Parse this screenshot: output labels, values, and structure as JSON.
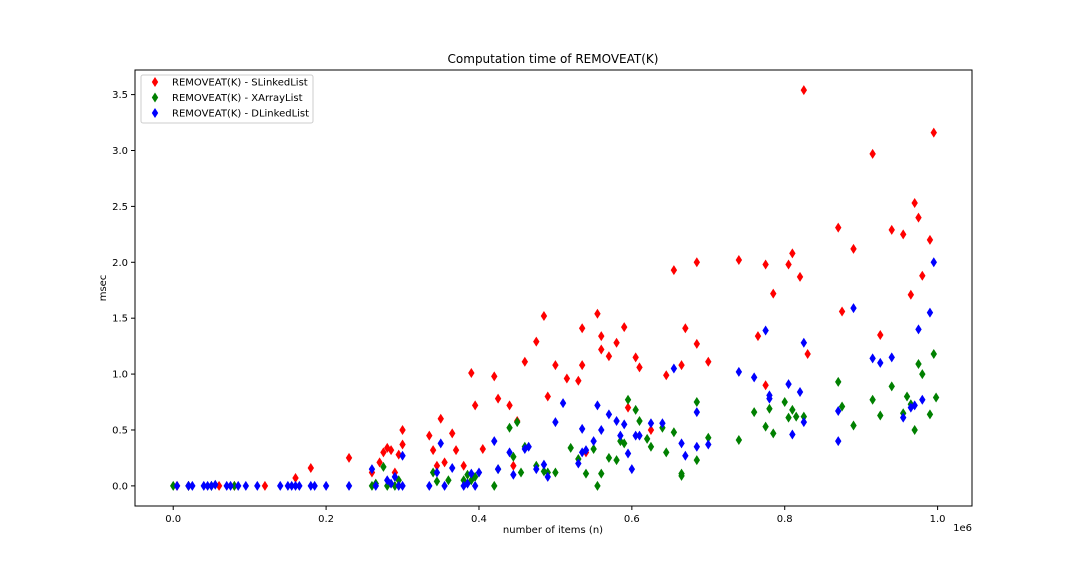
{
  "chart_data": {
    "type": "scatter",
    "title": "Computation time of REMOVEAT(K)",
    "xlabel": "number of items (n)",
    "ylabel": "msec",
    "x_offset_label": "1e6",
    "xlim": [
      -0.05,
      1.045
    ],
    "ylim": [
      -0.18,
      3.72
    ],
    "x_ticks": [
      0.0,
      0.2,
      0.4,
      0.6,
      0.8,
      1.0
    ],
    "x_tick_labels": [
      "0.0",
      "0.2",
      "0.4",
      "0.6",
      "0.8",
      "1.0"
    ],
    "y_ticks": [
      0.0,
      0.5,
      1.0,
      1.5,
      2.0,
      2.5,
      3.0,
      3.5
    ],
    "y_tick_labels": [
      "0.0",
      "0.5",
      "1.0",
      "1.5",
      "2.0",
      "2.5",
      "3.0",
      "3.5"
    ],
    "grid": false,
    "legend_position": "top-left",
    "series": [
      {
        "name": "REMOVEAT(K) - SLinkedList",
        "color": "#ff0000",
        "marker": "thin-diamond",
        "points": [
          [
            0.005,
            0
          ],
          [
            0.02,
            0
          ],
          [
            0.06,
            0
          ],
          [
            0.08,
            0
          ],
          [
            0.12,
            0
          ],
          [
            0.16,
            0.07
          ],
          [
            0.18,
            0.16
          ],
          [
            0.23,
            0.25
          ],
          [
            0.26,
            0.12
          ],
          [
            0.27,
            0.21
          ],
          [
            0.275,
            0.3
          ],
          [
            0.28,
            0.34
          ],
          [
            0.285,
            0.32
          ],
          [
            0.29,
            0.12
          ],
          [
            0.295,
            0.28
          ],
          [
            0.3,
            0.5
          ],
          [
            0.3,
            0.37
          ],
          [
            0.335,
            0.45
          ],
          [
            0.34,
            0.32
          ],
          [
            0.345,
            0.18
          ],
          [
            0.35,
            0.6
          ],
          [
            0.355,
            0.21
          ],
          [
            0.365,
            0.47
          ],
          [
            0.37,
            0.32
          ],
          [
            0.38,
            0.18
          ],
          [
            0.39,
            1.01
          ],
          [
            0.395,
            0.72
          ],
          [
            0.405,
            0.33
          ],
          [
            0.42,
            0.98
          ],
          [
            0.425,
            0.78
          ],
          [
            0.44,
            0.72
          ],
          [
            0.445,
            0.18
          ],
          [
            0.45,
            0.58
          ],
          [
            0.46,
            1.11
          ],
          [
            0.475,
            1.29
          ],
          [
            0.485,
            1.52
          ],
          [
            0.49,
            0.8
          ],
          [
            0.5,
            1.08
          ],
          [
            0.515,
            0.96
          ],
          [
            0.53,
            0.94
          ],
          [
            0.535,
            1.41
          ],
          [
            0.535,
            1.08
          ],
          [
            0.54,
            0.3
          ],
          [
            0.555,
            1.54
          ],
          [
            0.56,
            1.22
          ],
          [
            0.56,
            1.34
          ],
          [
            0.57,
            1.16
          ],
          [
            0.58,
            1.28
          ],
          [
            0.59,
            1.42
          ],
          [
            0.595,
            0.7
          ],
          [
            0.605,
            1.15
          ],
          [
            0.61,
            1.06
          ],
          [
            0.625,
            0.5
          ],
          [
            0.645,
            0.99
          ],
          [
            0.655,
            1.93
          ],
          [
            0.665,
            1.08
          ],
          [
            0.67,
            1.41
          ],
          [
            0.685,
            2.0
          ],
          [
            0.685,
            1.27
          ],
          [
            0.7,
            1.11
          ],
          [
            0.74,
            2.02
          ],
          [
            0.765,
            1.34
          ],
          [
            0.775,
            1.98
          ],
          [
            0.775,
            0.9
          ],
          [
            0.785,
            1.72
          ],
          [
            0.805,
            1.98
          ],
          [
            0.81,
            2.08
          ],
          [
            0.82,
            1.87
          ],
          [
            0.825,
            3.54
          ],
          [
            0.83,
            1.18
          ],
          [
            0.87,
            2.31
          ],
          [
            0.875,
            1.56
          ],
          [
            0.89,
            2.12
          ],
          [
            0.915,
            2.97
          ],
          [
            0.925,
            1.35
          ],
          [
            0.94,
            2.29
          ],
          [
            0.955,
            2.25
          ],
          [
            0.965,
            1.71
          ],
          [
            0.97,
            2.53
          ],
          [
            0.975,
            2.4
          ],
          [
            0.98,
            1.88
          ],
          [
            0.99,
            2.2
          ],
          [
            0.995,
            3.16
          ]
        ]
      },
      {
        "name": "REMOVEAT(K) - XArrayList",
        "color": "#008000",
        "marker": "thin-diamond",
        "points": [
          [
            0.0,
            0
          ],
          [
            0.02,
            0
          ],
          [
            0.05,
            0
          ],
          [
            0.08,
            0
          ],
          [
            0.26,
            0
          ],
          [
            0.265,
            0.02
          ],
          [
            0.275,
            0.17
          ],
          [
            0.28,
            0
          ],
          [
            0.29,
            0
          ],
          [
            0.295,
            0.05
          ],
          [
            0.34,
            0.12
          ],
          [
            0.345,
            0.04
          ],
          [
            0.36,
            0.05
          ],
          [
            0.38,
            0.05
          ],
          [
            0.385,
            0.1
          ],
          [
            0.39,
            0.05
          ],
          [
            0.395,
            0.08
          ],
          [
            0.42,
            0
          ],
          [
            0.425,
            0.15
          ],
          [
            0.44,
            0.52
          ],
          [
            0.445,
            0.26
          ],
          [
            0.45,
            0.57
          ],
          [
            0.455,
            0.12
          ],
          [
            0.46,
            0.35
          ],
          [
            0.475,
            0.18
          ],
          [
            0.485,
            0.13
          ],
          [
            0.49,
            0.12
          ],
          [
            0.5,
            0.12
          ],
          [
            0.52,
            0.34
          ],
          [
            0.53,
            0.24
          ],
          [
            0.54,
            0.11
          ],
          [
            0.55,
            0.33
          ],
          [
            0.555,
            0
          ],
          [
            0.56,
            0.11
          ],
          [
            0.57,
            0.25
          ],
          [
            0.58,
            0.23
          ],
          [
            0.585,
            0.4
          ],
          [
            0.59,
            0.38
          ],
          [
            0.595,
            0.77
          ],
          [
            0.605,
            0.68
          ],
          [
            0.61,
            0.58
          ],
          [
            0.62,
            0.42
          ],
          [
            0.625,
            0.35
          ],
          [
            0.64,
            0.52
          ],
          [
            0.645,
            0.3
          ],
          [
            0.655,
            0.48
          ],
          [
            0.665,
            0.11
          ],
          [
            0.665,
            0.09
          ],
          [
            0.685,
            0.75
          ],
          [
            0.685,
            0.23
          ],
          [
            0.7,
            0.43
          ],
          [
            0.74,
            0.41
          ],
          [
            0.76,
            0.66
          ],
          [
            0.775,
            0.53
          ],
          [
            0.78,
            0.69
          ],
          [
            0.785,
            0.47
          ],
          [
            0.8,
            0.75
          ],
          [
            0.805,
            0.61
          ],
          [
            0.81,
            0.68
          ],
          [
            0.815,
            0.62
          ],
          [
            0.825,
            0.62
          ],
          [
            0.87,
            0.93
          ],
          [
            0.875,
            0.71
          ],
          [
            0.89,
            0.54
          ],
          [
            0.915,
            0.77
          ],
          [
            0.925,
            0.63
          ],
          [
            0.94,
            0.89
          ],
          [
            0.955,
            0.65
          ],
          [
            0.96,
            0.8
          ],
          [
            0.965,
            0.73
          ],
          [
            0.97,
            0.5
          ],
          [
            0.975,
            1.09
          ],
          [
            0.98,
            1.0
          ],
          [
            0.99,
            0.64
          ],
          [
            0.995,
            1.18
          ],
          [
            0.998,
            0.79
          ]
        ]
      },
      {
        "name": "REMOVEAT(K) - DLinkedList",
        "color": "#0000ff",
        "marker": "thin-diamond",
        "points": [
          [
            0.005,
            0
          ],
          [
            0.02,
            0
          ],
          [
            0.025,
            0
          ],
          [
            0.04,
            0
          ],
          [
            0.045,
            0
          ],
          [
            0.05,
            0
          ],
          [
            0.055,
            0.01
          ],
          [
            0.07,
            0
          ],
          [
            0.075,
            0
          ],
          [
            0.085,
            0
          ],
          [
            0.095,
            0
          ],
          [
            0.11,
            0
          ],
          [
            0.14,
            0
          ],
          [
            0.15,
            0
          ],
          [
            0.155,
            0
          ],
          [
            0.16,
            0
          ],
          [
            0.165,
            0
          ],
          [
            0.18,
            0
          ],
          [
            0.185,
            0
          ],
          [
            0.2,
            0
          ],
          [
            0.23,
            0
          ],
          [
            0.26,
            0.15
          ],
          [
            0.265,
            0
          ],
          [
            0.28,
            0.05
          ],
          [
            0.285,
            0.02
          ],
          [
            0.29,
            0.08
          ],
          [
            0.295,
            0
          ],
          [
            0.3,
            0.27
          ],
          [
            0.3,
            0
          ],
          [
            0.335,
            0
          ],
          [
            0.345,
            0.12
          ],
          [
            0.35,
            0.38
          ],
          [
            0.355,
            0
          ],
          [
            0.365,
            0.16
          ],
          [
            0.38,
            0
          ],
          [
            0.385,
            0.02
          ],
          [
            0.39,
            0.11
          ],
          [
            0.395,
            0
          ],
          [
            0.4,
            0.12
          ],
          [
            0.42,
            0.4
          ],
          [
            0.425,
            0.15
          ],
          [
            0.44,
            0.3
          ],
          [
            0.445,
            0.1
          ],
          [
            0.46,
            0.33
          ],
          [
            0.465,
            0.35
          ],
          [
            0.475,
            0.15
          ],
          [
            0.485,
            0.19
          ],
          [
            0.49,
            0.08
          ],
          [
            0.5,
            0.57
          ],
          [
            0.51,
            0.74
          ],
          [
            0.53,
            0.2
          ],
          [
            0.535,
            0.3
          ],
          [
            0.54,
            0.32
          ],
          [
            0.535,
            0.51
          ],
          [
            0.55,
            0.4
          ],
          [
            0.555,
            0.72
          ],
          [
            0.56,
            0.5
          ],
          [
            0.57,
            0.64
          ],
          [
            0.58,
            0.58
          ],
          [
            0.585,
            0.45
          ],
          [
            0.59,
            0.55
          ],
          [
            0.595,
            0.29
          ],
          [
            0.6,
            0.15
          ],
          [
            0.605,
            0.45
          ],
          [
            0.61,
            0.45
          ],
          [
            0.625,
            0.56
          ],
          [
            0.64,
            0.56
          ],
          [
            0.655,
            1.05
          ],
          [
            0.665,
            0.38
          ],
          [
            0.67,
            0.27
          ],
          [
            0.685,
            0.35
          ],
          [
            0.685,
            0.66
          ],
          [
            0.7,
            0.37
          ],
          [
            0.74,
            1.02
          ],
          [
            0.76,
            0.97
          ],
          [
            0.775,
            1.39
          ],
          [
            0.78,
            0.78
          ],
          [
            0.78,
            0.81
          ],
          [
            0.805,
            0.91
          ],
          [
            0.81,
            0.46
          ],
          [
            0.82,
            0.84
          ],
          [
            0.825,
            1.28
          ],
          [
            0.825,
            0.57
          ],
          [
            0.87,
            0.4
          ],
          [
            0.87,
            0.67
          ],
          [
            0.89,
            1.59
          ],
          [
            0.915,
            1.14
          ],
          [
            0.925,
            1.1
          ],
          [
            0.94,
            1.15
          ],
          [
            0.955,
            0.61
          ],
          [
            0.965,
            0.7
          ],
          [
            0.97,
            0.72
          ],
          [
            0.975,
            1.4
          ],
          [
            0.98,
            0.77
          ],
          [
            0.99,
            1.55
          ],
          [
            0.995,
            2.0
          ]
        ]
      }
    ]
  }
}
